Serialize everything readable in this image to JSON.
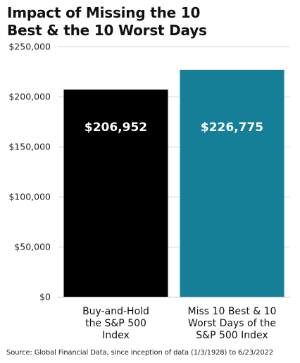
{
  "chart_data": {
    "type": "bar",
    "title_lines": [
      "Impact of Missing the 10",
      "Best & the 10 Worst Days"
    ],
    "categories": [
      [
        "Buy-and-Hold",
        "the S&P 500",
        "Index"
      ],
      [
        "Miss 10 Best & 10",
        "Worst Days of the",
        "S&P 500 Index"
      ]
    ],
    "values": [
      206952,
      226775
    ],
    "data_labels": [
      "$206,952",
      "$226,775"
    ],
    "bar_colors": [
      "#000000",
      "#167f98"
    ],
    "ylim": [
      0,
      250000
    ],
    "yticks": [
      0,
      50000,
      100000,
      150000,
      200000,
      250000
    ],
    "ytick_labels": [
      "$0",
      "$50,000",
      "$100,000",
      "$150,000",
      "$200,000",
      "$250,000"
    ],
    "grid": true,
    "source": "Source: Global Financial Data, since inception of data (1/3/1928) to 6/23/2022"
  }
}
